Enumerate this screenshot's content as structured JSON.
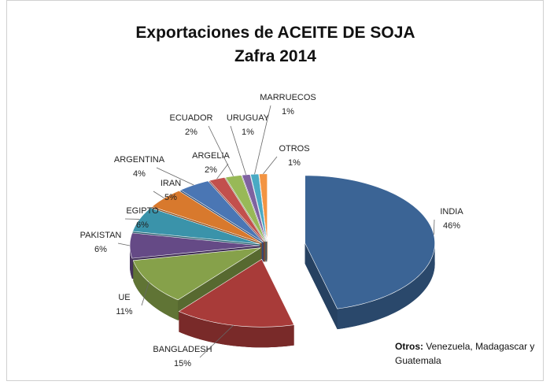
{
  "chart_data": {
    "type": "pie3d",
    "title": "Exportaciones de ACEITE DE SOJA",
    "subtitle": "Zafra 2014",
    "categories": [
      "INDIA",
      "BANGLADESH",
      "UE",
      "PAKISTAN",
      "EGIPTO",
      "IRAN",
      "ARGENTINA",
      "ARGELIA",
      "ECUADOR",
      "URUGUAY",
      "MARRUECOS",
      "OTROS"
    ],
    "values": [
      46,
      15,
      11,
      6,
      6,
      5,
      4,
      2,
      2,
      1,
      1,
      1
    ],
    "value_labels": [
      "46%",
      "15%",
      "11%",
      "6%",
      "6%",
      "5%",
      "4%",
      "2%",
      "2%",
      "1%",
      "1%",
      "1%"
    ],
    "colors": [
      "#3b6495",
      "#a83b39",
      "#86a14a",
      "#654a86",
      "#3a93aa",
      "#d8792d",
      "#4a76b4",
      "#c2504d",
      "#98b957",
      "#7e62a0",
      "#4aaac4",
      "#f39442"
    ],
    "note_label": "Otros:",
    "note_text": "Venezuela, Madagascar y Guatemala"
  }
}
